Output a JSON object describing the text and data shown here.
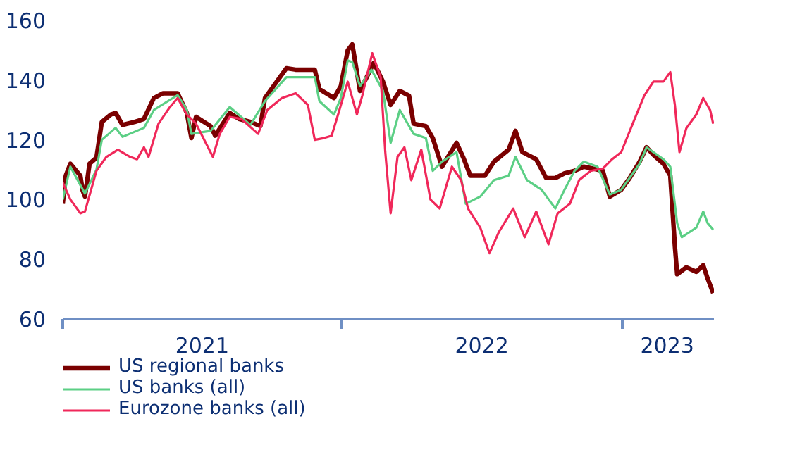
{
  "chart_data": {
    "type": "line",
    "xlim": [
      "2021-01-01",
      "2023-05-01"
    ],
    "ylim": [
      60,
      160
    ],
    "yticks": [
      60,
      80,
      100,
      120,
      140,
      160
    ],
    "xticks": [
      {
        "value": "2021-01-01",
        "label": null
      },
      {
        "value": "2021-07-02",
        "label": "2021"
      },
      {
        "value": "2022-01-01",
        "label": null
      },
      {
        "value": "2022-07-02",
        "label": "2022"
      },
      {
        "value": "2023-01-01",
        "label": null
      },
      {
        "value": "2023-03-01",
        "label": "2023"
      }
    ],
    "grid": false,
    "legend": "bottom left",
    "marker": "none",
    "line_style": "solid",
    "series": [
      {
        "name": "US regional banks",
        "color": "#7a0000",
        "x": [
          "2021-01-01",
          "2021-01-05",
          "2021-01-11",
          "2021-01-24",
          "2021-01-27",
          "2021-01-30",
          "2021-02-05",
          "2021-02-14",
          "2021-02-21",
          "2021-03-05",
          "2021-03-11",
          "2021-03-20",
          "2021-04-05",
          "2021-04-17",
          "2021-04-30",
          "2021-05-12",
          "2021-05-31",
          "2021-06-12",
          "2021-06-18",
          "2021-06-24",
          "2021-07-13",
          "2021-07-19",
          "2021-08-07",
          "2021-08-19",
          "2021-09-03",
          "2021-09-16",
          "2021-09-22",
          "2021-10-20",
          "2021-11-01",
          "2021-11-26",
          "2021-12-02",
          "2021-12-21",
          "2021-12-30",
          "2022-01-08",
          "2022-01-14",
          "2022-01-24",
          "2022-01-30",
          "2022-02-11",
          "2022-02-23",
          "2022-03-05",
          "2022-03-17",
          "2022-03-29",
          "2022-04-04",
          "2022-04-20",
          "2022-04-29",
          "2022-05-11",
          "2022-05-30",
          "2022-06-08",
          "2022-06-17",
          "2022-07-06",
          "2022-07-18",
          "2022-08-06",
          "2022-08-15",
          "2022-08-24",
          "2022-09-11",
          "2022-09-24",
          "2022-10-06",
          "2022-10-18",
          "2022-10-31",
          "2022-11-12",
          "2022-11-24",
          "2022-12-07",
          "2022-12-16",
          "2022-12-31",
          "2023-01-11",
          "2023-01-24",
          "2023-02-02",
          "2023-02-11",
          "2023-02-24",
          "2023-03-05",
          "2023-03-11",
          "2023-03-14",
          "2023-03-26",
          "2023-04-08",
          "2023-04-17",
          "2023-04-23",
          "2023-04-30"
        ],
        "values": [
          98.6,
          108,
          112,
          108,
          103,
          101,
          112,
          114,
          126,
          128.5,
          129,
          125,
          126,
          127,
          134,
          135.6,
          135.6,
          129,
          120.6,
          127.7,
          124.6,
          121.4,
          129,
          127,
          126,
          124.6,
          134,
          144,
          143.5,
          143.5,
          137,
          134,
          138,
          150,
          152,
          136.4,
          139.5,
          145.8,
          139.5,
          131.7,
          136.4,
          134.8,
          125.4,
          124.6,
          120.6,
          111,
          119,
          114,
          108,
          108,
          112.7,
          116.7,
          123,
          115.9,
          113.5,
          107.2,
          107.2,
          108.8,
          109.6,
          111,
          110.4,
          109.6,
          101,
          103.3,
          107.2,
          112.7,
          117.5,
          115,
          112,
          108,
          84.4,
          75,
          77.3,
          75.8,
          78,
          73.4,
          68.7
        ]
      },
      {
        "name": "US banks (all)",
        "color": "#5ccf85",
        "x": [
          "2021-01-01",
          "2021-01-11",
          "2021-01-30",
          "2021-02-14",
          "2021-02-21",
          "2021-03-11",
          "2021-03-20",
          "2021-04-17",
          "2021-04-30",
          "2021-05-31",
          "2021-06-12",
          "2021-06-18",
          "2021-07-13",
          "2021-08-07",
          "2021-09-03",
          "2021-09-22",
          "2021-10-20",
          "2021-11-26",
          "2021-12-02",
          "2021-12-21",
          "2021-12-30",
          "2022-01-08",
          "2022-01-14",
          "2022-01-24",
          "2022-02-08",
          "2022-02-23",
          "2022-03-05",
          "2022-03-17",
          "2022-04-04",
          "2022-04-20",
          "2022-04-29",
          "2022-05-11",
          "2022-05-30",
          "2022-06-11",
          "2022-06-30",
          "2022-07-18",
          "2022-08-06",
          "2022-08-15",
          "2022-08-30",
          "2022-09-18",
          "2022-10-06",
          "2022-10-18",
          "2022-10-31",
          "2022-11-12",
          "2022-11-30",
          "2022-12-16",
          "2022-12-31",
          "2023-01-24",
          "2023-02-02",
          "2023-02-24",
          "2023-03-05",
          "2023-03-14",
          "2023-03-20",
          "2023-04-08",
          "2023-04-17",
          "2023-04-23",
          "2023-04-30"
        ],
        "values": [
          100,
          111,
          102,
          110,
          120,
          124,
          121,
          124,
          130,
          135,
          130,
          122,
          123,
          131,
          125,
          133,
          141,
          141,
          133,
          128.5,
          134,
          146.6,
          146,
          138,
          143.5,
          136.4,
          119,
          130,
          122,
          120.6,
          109.6,
          112.7,
          115.9,
          98.6,
          101,
          106.5,
          108,
          114.3,
          106.5,
          103.3,
          97,
          103.3,
          109.6,
          112.7,
          111,
          101.7,
          103.3,
          112,
          117.5,
          113.5,
          111,
          92.1,
          87.4,
          90.6,
          96,
          92,
          89.9
        ]
      },
      {
        "name": "Eurozone banks (all)",
        "color": "#f0285a",
        "x": [
          "2021-01-01",
          "2021-01-11",
          "2021-01-24",
          "2021-01-30",
          "2021-02-14",
          "2021-02-27",
          "2021-03-14",
          "2021-03-30",
          "2021-04-08",
          "2021-04-17",
          "2021-04-23",
          "2021-05-06",
          "2021-05-21",
          "2021-05-31",
          "2021-06-12",
          "2021-06-24",
          "2021-07-16",
          "2021-07-25",
          "2021-08-07",
          "2021-08-22",
          "2021-09-13",
          "2021-09-25",
          "2021-10-14",
          "2021-11-01",
          "2021-11-17",
          "2021-11-26",
          "2021-12-08",
          "2021-12-18",
          "2021-12-27",
          "2022-01-08",
          "2022-01-20",
          "2022-01-27",
          "2022-02-09",
          "2022-02-20",
          "2022-02-26",
          "2022-03-05",
          "2022-03-14",
          "2022-03-23",
          "2022-04-01",
          "2022-04-14",
          "2022-04-26",
          "2022-05-08",
          "2022-05-24",
          "2022-06-05",
          "2022-06-14",
          "2022-06-30",
          "2022-07-12",
          "2022-07-24",
          "2022-08-12",
          "2022-08-27",
          "2022-09-11",
          "2022-09-27",
          "2022-10-09",
          "2022-10-25",
          "2022-11-06",
          "2022-11-21",
          "2022-12-07",
          "2022-12-19",
          "2022-12-31",
          "2023-01-15",
          "2023-01-30",
          "2023-02-11",
          "2023-02-24",
          "2023-03-05",
          "2023-03-11",
          "2023-03-17",
          "2023-03-26",
          "2023-04-08",
          "2023-04-17",
          "2023-04-26",
          "2023-04-30"
        ],
        "values": [
          105.7,
          100,
          95.4,
          96,
          109.6,
          114.3,
          116.7,
          114.3,
          113.5,
          117.5,
          114.3,
          125.4,
          131,
          134,
          128.5,
          125.4,
          114.3,
          122,
          127.7,
          127,
          122,
          130,
          134,
          135.6,
          131.7,
          120,
          120.6,
          121.4,
          129,
          139.5,
          128.5,
          134.8,
          149,
          141,
          115.9,
          95.4,
          114.3,
          117.5,
          106.5,
          116.7,
          100,
          97,
          111,
          106.5,
          97,
          90.6,
          82,
          89,
          97,
          87.4,
          96,
          85,
          95.4,
          98.6,
          106.5,
          109.6,
          110.4,
          113.5,
          115.9,
          125.4,
          134.8,
          139.5,
          139.5,
          142.7,
          131.7,
          115.9,
          123.9,
          128.5,
          134,
          130,
          125.4
        ]
      }
    ]
  }
}
